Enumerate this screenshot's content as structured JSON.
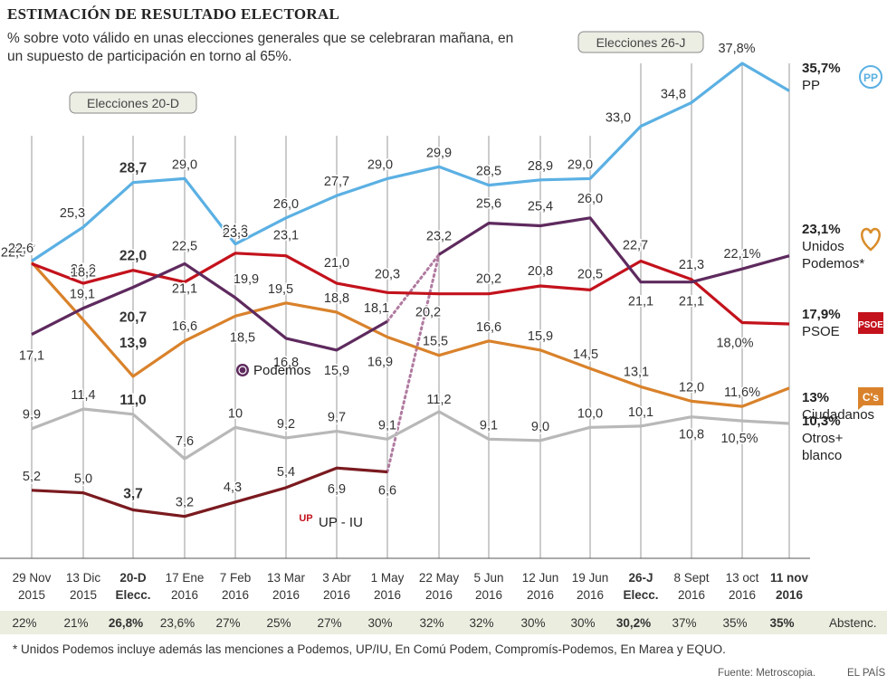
{
  "header": {
    "title": "ESTIMACIÓN DE RESULTADO ELECTORAL",
    "subtitle": "% sobre voto válido en unas elecciones generales que se celebraran mañana, en un supuesto de participación en torno al 65%."
  },
  "footer": {
    "footnote": "* Unidos Podemos incluye además las menciones a Podemos, UP/IU, En Comú Podem, Compromís-Podemos, En Marea y EQUO.",
    "source": "Fuente: Metroscopia.",
    "brand": "EL PAÍS"
  },
  "colors": {
    "PP": "#5bb0e3",
    "Podemos": "#5e2a5e",
    "PSOE": "#c3121c",
    "Ciudadanos": "#d9822b",
    "Otros": "#b8b8b8",
    "UPIU": "#7a1a1f",
    "band": "#ebeddf",
    "grid": "#9a9a9a"
  },
  "chart_data": {
    "type": "line",
    "x": [
      "29 Nov 2015",
      "13 Dic 2015",
      "20-D Elecc.",
      "17 Ene 2016",
      "7 Feb 2016",
      "13 Mar 2016",
      "3 Abr 2016",
      "1 May 2016",
      "22 May 2016",
      "5 Jun 2016",
      "12 Jun 2016",
      "19 Jun 2016",
      "26-J Elecc.",
      "8 Sept 2016",
      "13 oct 2016",
      "11 nov 2016"
    ],
    "x_ticks": [
      {
        "l1": "29 Nov",
        "l2": "2015",
        "bold": false
      },
      {
        "l1": "13 Dic",
        "l2": "2015",
        "bold": false
      },
      {
        "l1": "20-D",
        "l2": "Elecc.",
        "bold": true
      },
      {
        "l1": "17 Ene",
        "l2": "2016",
        "bold": false
      },
      {
        "l1": "7 Feb",
        "l2": "2016",
        "bold": false
      },
      {
        "l1": "13 Mar",
        "l2": "2016",
        "bold": false
      },
      {
        "l1": "3 Abr",
        "l2": "2016",
        "bold": false
      },
      {
        "l1": "1 May",
        "l2": "2016",
        "bold": false
      },
      {
        "l1": "22 May",
        "l2": "2016",
        "bold": false
      },
      {
        "l1": "5 Jun",
        "l2": "2016",
        "bold": false
      },
      {
        "l1": "12 Jun",
        "l2": "2016",
        "bold": false
      },
      {
        "l1": "19 Jun",
        "l2": "2016",
        "bold": false
      },
      {
        "l1": "26-J",
        "l2": "Elecc.",
        "bold": true
      },
      {
        "l1": "8 Sept",
        "l2": "2016",
        "bold": false
      },
      {
        "l1": "13 oct",
        "l2": "2016",
        "bold": false
      },
      {
        "l1": "11 nov",
        "l2": "2016",
        "bold": true
      }
    ],
    "ylim": [
      0,
      40
    ],
    "grid": "vertical",
    "series": [
      {
        "name": "PP",
        "key": "PP",
        "values": [
          22.7,
          25.3,
          28.7,
          29.0,
          24.0,
          26.0,
          27.7,
          29.0,
          29.9,
          28.5,
          28.9,
          29.0,
          33.0,
          34.8,
          37.8,
          35.7
        ],
        "labels": [
          "22,7",
          "25,3",
          "28,7",
          "29,0",
          "24,0",
          "26,0",
          "27,7",
          "29,0",
          "29,9",
          "28,5",
          "28,9",
          "29,0",
          "33,0",
          "34,8",
          "37,8%",
          ""
        ]
      },
      {
        "name": "Unidos Podemos*",
        "key": "Podemos",
        "values": [
          17.1,
          19.1,
          20.7,
          22.5,
          19.9,
          16.8,
          15.9,
          18.1,
          23.2,
          25.6,
          25.4,
          26.0,
          21.1,
          21.1,
          22.1,
          23.1
        ],
        "labels": [
          "17,1",
          "19,1",
          "20,7",
          "22,5",
          "19,9",
          "16,8",
          "15,9",
          "18,1",
          "23,2",
          "25,6",
          "25,4",
          "26,0",
          "21,1",
          "21,1",
          "22,1%",
          ""
        ]
      },
      {
        "name": "PSOE",
        "key": "PSOE",
        "values": [
          22.5,
          21.0,
          22.0,
          21.1,
          23.3,
          23.1,
          21.0,
          20.3,
          20.2,
          20.2,
          20.8,
          20.5,
          22.7,
          21.3,
          18.0,
          17.9
        ],
        "labels": [
          "22,5",
          "21,0",
          "22,0",
          "21,1",
          "23,3",
          "23,1",
          "21,0",
          "20,3",
          "20,2",
          "20,2",
          "20,8",
          "20,5",
          "22,7",
          "21,3",
          "18,0%",
          ""
        ]
      },
      {
        "name": "Ciudadanos",
        "key": "Ciudadanos",
        "values": [
          22.6,
          18.2,
          13.9,
          16.6,
          18.5,
          19.5,
          18.8,
          16.9,
          15.5,
          16.6,
          15.9,
          14.5,
          13.1,
          12.0,
          11.6,
          13.0
        ],
        "labels": [
          "22,6",
          "18,2",
          "13,9",
          "16,6",
          "18,5",
          "19,5",
          "18,8",
          "16,9",
          "15,5",
          "16,6",
          "15,9",
          "14,5",
          "13,1",
          "12,0",
          "11,6%",
          ""
        ]
      },
      {
        "name": "Otros+ blanco",
        "key": "Otros",
        "values": [
          9.9,
          11.4,
          11.0,
          7.6,
          10.0,
          9.2,
          9.7,
          9.1,
          11.2,
          9.1,
          9.0,
          10.0,
          10.1,
          10.8,
          10.5,
          10.3
        ],
        "labels": [
          "9,9",
          "11,4",
          "11,0",
          "7,6",
          "10",
          "9,2",
          "9,7",
          "9,1",
          "11,2",
          "9,1",
          "9,0",
          "10,0",
          "10,1",
          "10,8",
          "10,5%",
          ""
        ]
      },
      {
        "name": "UP - IU",
        "key": "UPIU",
        "values": [
          5.2,
          5.0,
          3.7,
          3.2,
          4.3,
          5.4,
          6.9,
          6.6,
          null,
          null,
          null,
          null,
          null,
          null,
          null,
          null
        ],
        "labels": [
          "5,2",
          "5,0",
          "3,7",
          "3,2",
          "4,3",
          "5,4",
          "6,9",
          "6,6"
        ]
      }
    ],
    "end_labels": {
      "PP": {
        "value": "35,7%",
        "name": "PP"
      },
      "Podemos": {
        "value": "23,1%",
        "name1": "Unidos",
        "name2": "Podemos*"
      },
      "PSOE": {
        "value": "17,9%",
        "name": "PSOE"
      },
      "Ciudadanos": {
        "value": "13%",
        "name": "Ciudadanos"
      },
      "Otros": {
        "value": "10,3%",
        "name1": "Otros+",
        "name2": "blanco"
      }
    },
    "inline_labels": {
      "Podemos": "Podemos",
      "UPIU": "UP - IU"
    },
    "annotations": [
      "Elecciones 20-D",
      "Elecciones 26-J"
    ],
    "abstention": {
      "label": "Abstenc.",
      "values": [
        "22%",
        "21%",
        "26,8%",
        "23,6%",
        "27%",
        "25%",
        "27%",
        "30%",
        "32%",
        "32%",
        "30%",
        "30%",
        "30,2%",
        "37%",
        "35%",
        "35%"
      ],
      "bold": [
        false,
        false,
        true,
        false,
        false,
        false,
        false,
        false,
        false,
        false,
        false,
        false,
        true,
        false,
        false,
        true
      ]
    },
    "logos": {
      "PP": "PP",
      "PSOE": "PSOE",
      "Ciudadanos": "C's",
      "UPIU": "UP"
    }
  }
}
